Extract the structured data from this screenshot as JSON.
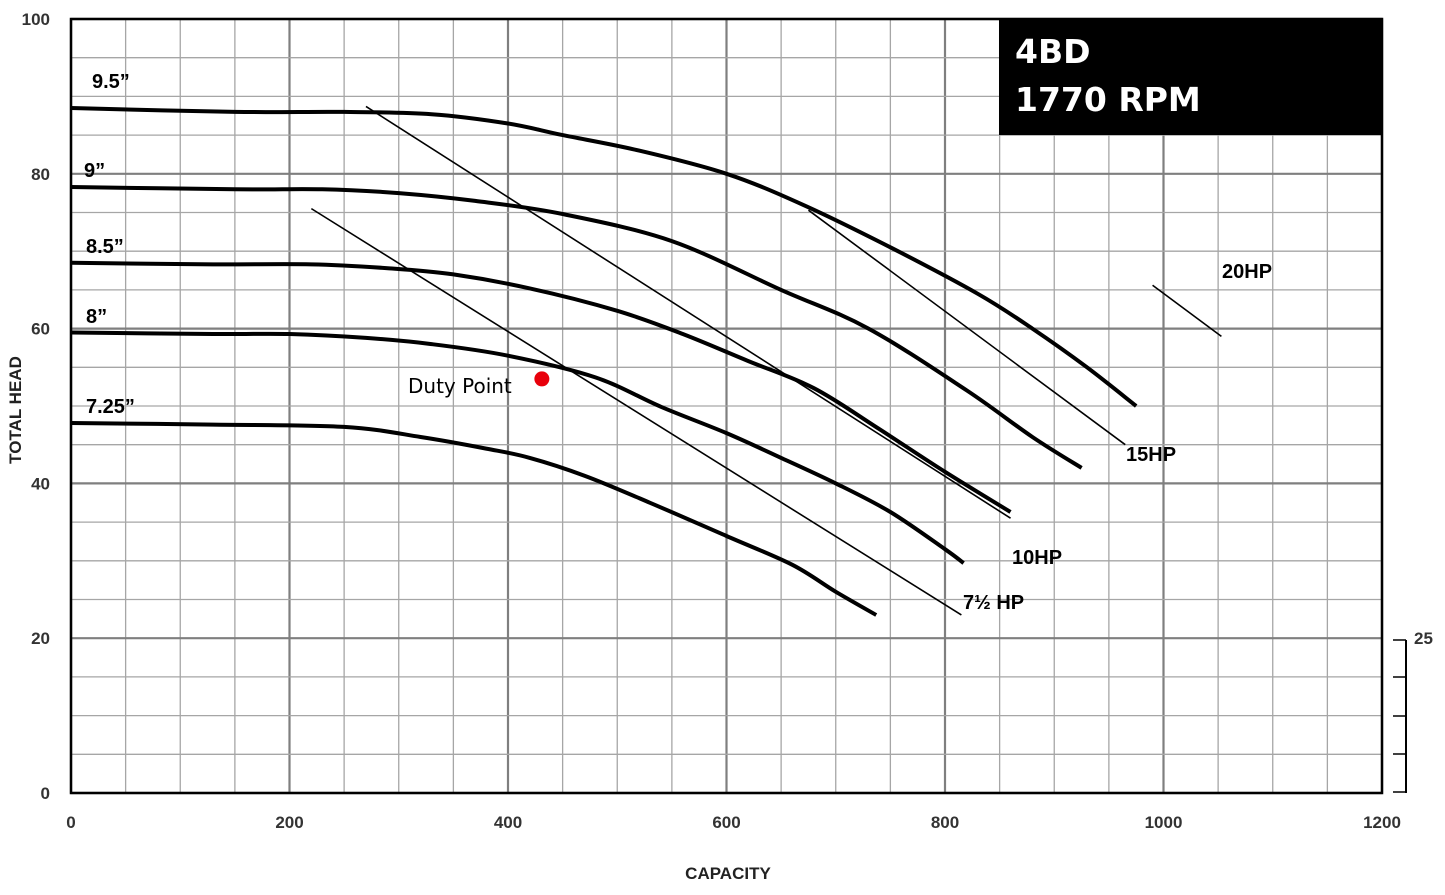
{
  "chart_data": {
    "type": "line",
    "title_lines": [
      "4BD",
      "1770 RPM"
    ],
    "xlabel": "CAPACITY",
    "ylabel": "TOTAL HEAD",
    "xlim": [
      0,
      1200
    ],
    "ylim": [
      0,
      100
    ],
    "x_ticks": [
      "0",
      "200",
      "400",
      "600",
      "800",
      "1000",
      "1200"
    ],
    "y_ticks": [
      "0",
      "20",
      "40",
      "60",
      "80",
      "100"
    ],
    "grid": true,
    "colors": {
      "curve": "#000000",
      "grid": "#a6a6a6",
      "major_grid": "#7f7f7f",
      "duty_point": "#e8000b",
      "badge": "#000000"
    },
    "series": [
      {
        "name": "9.5”",
        "x": [
          0,
          150,
          250,
          330,
          400,
          450,
          520,
          600,
          670,
          750,
          830,
          880,
          930,
          975
        ],
        "y": [
          88.5,
          88,
          88,
          87.7,
          86.5,
          85,
          83,
          80,
          76,
          70.5,
          64.5,
          60,
          55,
          50
        ]
      },
      {
        "name": "9”",
        "x": [
          0,
          150,
          230,
          300,
          370,
          450,
          550,
          650,
          730,
          820,
          880,
          925
        ],
        "y": [
          78.3,
          78,
          78,
          77.5,
          76.5,
          74.8,
          71.3,
          65,
          60,
          52,
          46,
          42
        ]
      },
      {
        "name": "8.5”",
        "x": [
          0,
          130,
          220,
          290,
          350,
          420,
          500,
          560,
          620,
          680,
          740,
          800,
          860
        ],
        "y": [
          68.5,
          68.3,
          68.3,
          67.8,
          67,
          65.2,
          62.3,
          59.3,
          55.8,
          52.3,
          47,
          41.5,
          36.3
        ]
      },
      {
        "name": "8”",
        "x": [
          0,
          130,
          200,
          270,
          330,
          400,
          480,
          540,
          600,
          650,
          700,
          750,
          800,
          817
        ],
        "y": [
          59.5,
          59.3,
          59.3,
          58.8,
          58,
          56.5,
          53.7,
          49.9,
          46.5,
          43.3,
          40,
          36.3,
          31.5,
          29.7
        ]
      },
      {
        "name": "7.25”",
        "x": [
          0,
          130,
          250,
          320,
          380,
          420,
          470,
          530,
          600,
          660,
          700,
          737
        ],
        "y": [
          47.8,
          47.6,
          47.3,
          46,
          44.5,
          43.3,
          41,
          37.5,
          33.2,
          29.5,
          26,
          23
        ]
      }
    ],
    "hp_lines": [
      {
        "name": "7½ HP",
        "x": [
          220,
          815
        ],
        "y": [
          75.5,
          23
        ]
      },
      {
        "name": "10HP",
        "x": [
          270,
          860
        ],
        "y": [
          88.7,
          35.5
        ]
      },
      {
        "name": "15HP",
        "x": [
          675,
          965
        ],
        "y": [
          75.3,
          45
        ]
      },
      {
        "name": "20HP",
        "x": [
          990,
          1053
        ],
        "y": [
          65.6,
          59
        ]
      }
    ],
    "duty_point": {
      "label": "Duty Point",
      "x": 431,
      "y": 53.5
    },
    "secondary_axis": {
      "tick": "25"
    }
  }
}
